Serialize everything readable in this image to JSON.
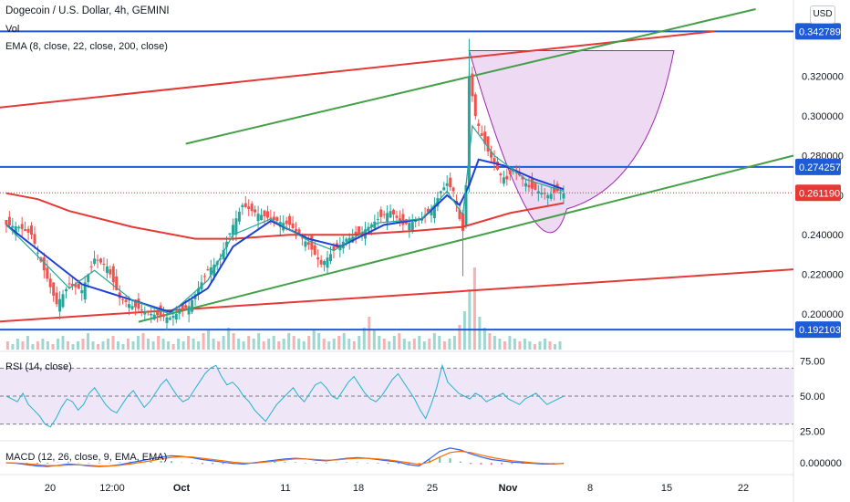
{
  "legend": {
    "symbol": "Dogecoin / U.S. Dollar, 4h, GEMINI",
    "vol": "Vol",
    "ema": "EMA (8, close, 22, close, 200, close)",
    "rsi": "RSI (14, close)",
    "macd": "MACD (12, 26, close, 9, EMA, EMA)"
  },
  "currency_badge": "USD",
  "colors": {
    "horizontal_line": "#1e5bd6",
    "red_channel": "#e53935",
    "green_channel": "#43a047",
    "cup_fill": "#e7c6ec",
    "cup_stroke": "#9c27b0",
    "ema_fast": "#26a69a",
    "ema_mid": "#1e40d6",
    "ema_slow": "#e53935",
    "candle_up": "#26a69a",
    "candle_down": "#ef5350",
    "rsi_line": "#22b3d1",
    "rsi_band": "#efe6f7",
    "current_price": "#e53935"
  },
  "chart_data": {
    "type": "candlestick",
    "symbol": "Dogecoin / U.S. Dollar, 4h, GEMINI",
    "x_ticks": [
      "20",
      "12:00",
      "Oct",
      "11",
      "18",
      "25",
      "Nov",
      "8",
      "15",
      "22"
    ],
    "y_ticks": [
      0.2,
      0.22,
      0.24,
      0.26,
      0.28,
      0.3,
      0.32
    ],
    "y_tick_labels": [
      "0.200000",
      "0.220000",
      "0.240000",
      "0.260000",
      "0.280000",
      "0.300000",
      "0.320000"
    ],
    "ylim": [
      0.188,
      0.354
    ],
    "price_tags": [
      {
        "label": "0.342789",
        "value": 0.342789,
        "color": "#1e5bd6"
      },
      {
        "label": "0.274257",
        "value": 0.274257,
        "color": "#1e5bd6"
      },
      {
        "label": "0.261190",
        "value": 0.26119,
        "color": "#e53935"
      },
      {
        "label": "0.192103",
        "value": 0.192103,
        "color": "#1e5bd6"
      }
    ],
    "horizontal_levels": [
      0.342789,
      0.274257,
      0.192103
    ],
    "current_price": 0.26119,
    "price_path": [
      {
        "x": 0,
        "y": 0.245
      },
      {
        "x": 4,
        "y": 0.244
      },
      {
        "x": 8,
        "y": 0.24
      },
      {
        "x": 12,
        "y": 0.222
      },
      {
        "x": 16,
        "y": 0.205
      },
      {
        "x": 20,
        "y": 0.215
      },
      {
        "x": 24,
        "y": 0.212
      },
      {
        "x": 28,
        "y": 0.228
      },
      {
        "x": 32,
        "y": 0.224
      },
      {
        "x": 36,
        "y": 0.208
      },
      {
        "x": 40,
        "y": 0.204
      },
      {
        "x": 46,
        "y": 0.2
      },
      {
        "x": 52,
        "y": 0.198
      },
      {
        "x": 58,
        "y": 0.204
      },
      {
        "x": 64,
        "y": 0.222
      },
      {
        "x": 68,
        "y": 0.228
      },
      {
        "x": 72,
        "y": 0.245
      },
      {
        "x": 75,
        "y": 0.255
      },
      {
        "x": 78,
        "y": 0.252
      },
      {
        "x": 84,
        "y": 0.248
      },
      {
        "x": 90,
        "y": 0.245
      },
      {
        "x": 96,
        "y": 0.235
      },
      {
        "x": 100,
        "y": 0.225
      },
      {
        "x": 104,
        "y": 0.232
      },
      {
        "x": 108,
        "y": 0.238
      },
      {
        "x": 112,
        "y": 0.24
      },
      {
        "x": 118,
        "y": 0.248
      },
      {
        "x": 122,
        "y": 0.252
      },
      {
        "x": 126,
        "y": 0.245
      },
      {
        "x": 132,
        "y": 0.248
      },
      {
        "x": 136,
        "y": 0.255
      },
      {
        "x": 138,
        "y": 0.262
      },
      {
        "x": 140,
        "y": 0.266
      },
      {
        "x": 142,
        "y": 0.262
      },
      {
        "x": 144,
        "y": 0.248
      },
      {
        "x": 145,
        "y": 0.242
      },
      {
        "x": 146,
        "y": 0.265
      },
      {
        "x": 147,
        "y": 0.32
      },
      {
        "x": 149,
        "y": 0.3
      },
      {
        "x": 151,
        "y": 0.29
      },
      {
        "x": 153,
        "y": 0.282
      },
      {
        "x": 155,
        "y": 0.276
      },
      {
        "x": 157,
        "y": 0.27
      },
      {
        "x": 159,
        "y": 0.268
      },
      {
        "x": 161,
        "y": 0.273
      },
      {
        "x": 163,
        "y": 0.27
      },
      {
        "x": 166,
        "y": 0.264
      },
      {
        "x": 169,
        "y": 0.262
      },
      {
        "x": 172,
        "y": 0.26
      },
      {
        "x": 175,
        "y": 0.262
      },
      {
        "x": 177,
        "y": 0.261
      }
    ],
    "ema_fast": [
      {
        "x": 0,
        "y": 0.245
      },
      {
        "x": 12,
        "y": 0.226
      },
      {
        "x": 20,
        "y": 0.213
      },
      {
        "x": 28,
        "y": 0.222
      },
      {
        "x": 40,
        "y": 0.207
      },
      {
        "x": 52,
        "y": 0.2
      },
      {
        "x": 64,
        "y": 0.217
      },
      {
        "x": 72,
        "y": 0.24
      },
      {
        "x": 84,
        "y": 0.248
      },
      {
        "x": 96,
        "y": 0.237
      },
      {
        "x": 104,
        "y": 0.232
      },
      {
        "x": 118,
        "y": 0.246
      },
      {
        "x": 132,
        "y": 0.248
      },
      {
        "x": 140,
        "y": 0.262
      },
      {
        "x": 145,
        "y": 0.25
      },
      {
        "x": 148,
        "y": 0.295
      },
      {
        "x": 155,
        "y": 0.28
      },
      {
        "x": 165,
        "y": 0.268
      },
      {
        "x": 177,
        "y": 0.262
      }
    ],
    "ema_mid": [
      {
        "x": 0,
        "y": 0.245
      },
      {
        "x": 12,
        "y": 0.23
      },
      {
        "x": 24,
        "y": 0.215
      },
      {
        "x": 40,
        "y": 0.207
      },
      {
        "x": 52,
        "y": 0.201
      },
      {
        "x": 64,
        "y": 0.213
      },
      {
        "x": 72,
        "y": 0.234
      },
      {
        "x": 84,
        "y": 0.247
      },
      {
        "x": 96,
        "y": 0.238
      },
      {
        "x": 106,
        "y": 0.234
      },
      {
        "x": 120,
        "y": 0.245
      },
      {
        "x": 132,
        "y": 0.248
      },
      {
        "x": 140,
        "y": 0.26
      },
      {
        "x": 144,
        "y": 0.255
      },
      {
        "x": 147,
        "y": 0.265
      },
      {
        "x": 150,
        "y": 0.278
      },
      {
        "x": 158,
        "y": 0.275
      },
      {
        "x": 168,
        "y": 0.268
      },
      {
        "x": 177,
        "y": 0.263
      }
    ],
    "ema_slow": [
      {
        "x": 0,
        "y": 0.261
      },
      {
        "x": 10,
        "y": 0.258
      },
      {
        "x": 20,
        "y": 0.252
      },
      {
        "x": 40,
        "y": 0.244
      },
      {
        "x": 60,
        "y": 0.238
      },
      {
        "x": 72,
        "y": 0.238
      },
      {
        "x": 90,
        "y": 0.24
      },
      {
        "x": 110,
        "y": 0.24
      },
      {
        "x": 130,
        "y": 0.242
      },
      {
        "x": 145,
        "y": 0.244
      },
      {
        "x": 160,
        "y": 0.251
      },
      {
        "x": 177,
        "y": 0.256
      }
    ],
    "red_channel_upper": [
      {
        "x": -4,
        "y": 0.304
      },
      {
        "x": 225,
        "y": 0.342789
      }
    ],
    "red_channel_lower": [
      {
        "x": -4,
        "y": 0.196
      },
      {
        "x": 250,
        "y": 0.2225
      }
    ],
    "green_channel_upper": [
      {
        "x": 57,
        "y": 0.286
      },
      {
        "x": 238,
        "y": 0.354
      }
    ],
    "green_channel_lower": [
      {
        "x": 42,
        "y": 0.196
      },
      {
        "x": 250,
        "y": 0.28
      }
    ],
    "cup_pattern": {
      "left": {
        "x": 147,
        "y": 0.333
      },
      "bottom": {
        "x": 178,
        "y": 0.253
      },
      "right": {
        "x": 212,
        "y": 0.333
      }
    },
    "x_range": [
      -2,
      250
    ],
    "volume": [
      3,
      2,
      4,
      3,
      5,
      2,
      3,
      4,
      3,
      2,
      4,
      5,
      3,
      2,
      3,
      4,
      6,
      3,
      2,
      3,
      4,
      5,
      3,
      2,
      4,
      3,
      5,
      6,
      4,
      3,
      5,
      4,
      3,
      2,
      4,
      3,
      5,
      4,
      3,
      6,
      7,
      4,
      3,
      5,
      8,
      6,
      4,
      3,
      5,
      4,
      6,
      3,
      4,
      5,
      3,
      4,
      6,
      5,
      4,
      3,
      5,
      7,
      6,
      4,
      3,
      4,
      5,
      6,
      4,
      3,
      5,
      8,
      12,
      7,
      5,
      4,
      3,
      5,
      6,
      4,
      3,
      4,
      5,
      3,
      4,
      6,
      5,
      3,
      4,
      5,
      9,
      14,
      22,
      30,
      12,
      8,
      6,
      5,
      4,
      3,
      5,
      4,
      3,
      4,
      3,
      2,
      3,
      4,
      3,
      2,
      3
    ],
    "rsi": {
      "ylim": [
        20,
        80
      ],
      "levels": [
        70,
        50,
        30
      ],
      "tick_labels": [
        "75.00",
        "50.00",
        "25.00"
      ],
      "tick_values": [
        75,
        50,
        25
      ],
      "values": [
        50,
        48,
        46,
        52,
        44,
        40,
        36,
        30,
        28,
        34,
        42,
        48,
        46,
        40,
        44,
        52,
        56,
        50,
        44,
        40,
        38,
        44,
        50,
        54,
        48,
        42,
        46,
        52,
        58,
        62,
        56,
        50,
        46,
        48,
        54,
        60,
        66,
        70,
        72,
        64,
        58,
        60,
        56,
        50,
        46,
        40,
        36,
        32,
        38,
        44,
        48,
        52,
        56,
        50,
        46,
        52,
        58,
        60,
        56,
        50,
        48,
        54,
        60,
        64,
        58,
        52,
        48,
        46,
        50,
        56,
        62,
        66,
        60,
        54,
        48,
        40,
        34,
        44,
        56,
        72,
        60,
        56,
        52,
        50,
        48,
        52,
        50,
        46,
        48,
        50,
        52,
        48,
        46,
        44,
        48,
        50,
        52,
        48,
        44,
        46,
        48,
        50
      ]
    },
    "macd": {
      "tick_label": "0.000000",
      "macd": [
        0,
        -0.1,
        -0.3,
        -0.5,
        -0.6,
        -0.4,
        -0.2,
        -0.3,
        -0.5,
        -0.6,
        -0.5,
        -0.3,
        0,
        0.3,
        0.6,
        0.9,
        1.1,
        1,
        0.8,
        0.5,
        0.3,
        0.1,
        -0.1,
        -0.2,
        0,
        0.2,
        0.4,
        0.6,
        0.7,
        0.6,
        0.4,
        0.3,
        0.5,
        0.7,
        0.8,
        0.7,
        0.5,
        0.3,
        0.1,
        -0.3,
        -0.5,
        0.6,
        1.8,
        2.3,
        2,
        1.4,
        0.9,
        0.5,
        0.3,
        0.1,
        0,
        -0.1,
        -0.2,
        -0.2,
        -0.1
      ],
      "signal": [
        0,
        -0.05,
        -0.15,
        -0.3,
        -0.45,
        -0.45,
        -0.35,
        -0.32,
        -0.4,
        -0.5,
        -0.5,
        -0.4,
        -0.2,
        0.05,
        0.3,
        0.6,
        0.85,
        0.95,
        0.9,
        0.7,
        0.5,
        0.3,
        0.1,
        -0.05,
        -0.05,
        0.1,
        0.25,
        0.45,
        0.6,
        0.6,
        0.5,
        0.4,
        0.45,
        0.6,
        0.7,
        0.7,
        0.6,
        0.45,
        0.25,
        0,
        -0.25,
        0.1,
        0.9,
        1.6,
        1.8,
        1.6,
        1.2,
        0.85,
        0.55,
        0.3,
        0.15,
        0,
        -0.1,
        -0.15,
        -0.12
      ]
    }
  }
}
